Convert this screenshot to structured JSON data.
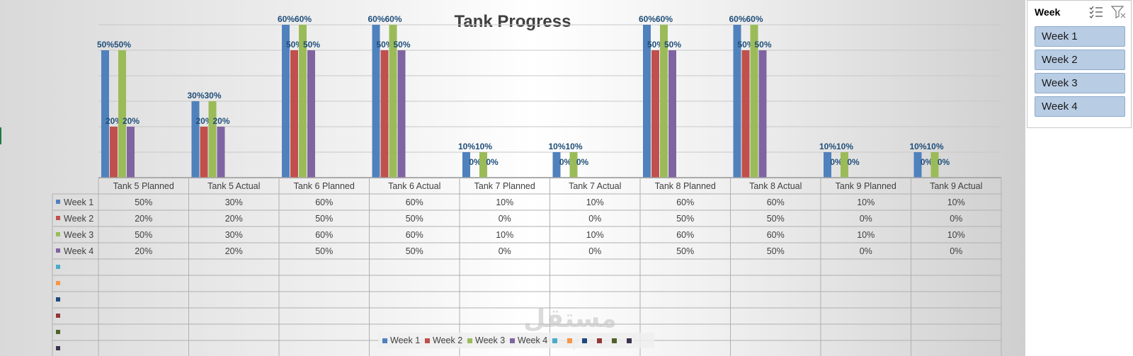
{
  "chart_data": {
    "type": "bar",
    "title": "Tank Progress",
    "categories": [
      "Tank 5 Planned",
      "Tank 5 Actual",
      "Tank 6 Planned",
      "Tank 6 Actual",
      "Tank 7 Planned",
      "Tank 7 Actual",
      "Tank 8 Planned",
      "Tank 8 Actual",
      "Tank 9 Planned",
      "Tank 9 Actual"
    ],
    "series": [
      {
        "name": "Week 1",
        "color": "#4f81bd",
        "values": [
          0.5,
          0.3,
          0.6,
          0.6,
          0.1,
          0.1,
          0.6,
          0.6,
          0.1,
          0.1
        ],
        "labels": [
          "50%",
          "30%",
          "60%",
          "60%",
          "10%",
          "10%",
          "60%",
          "60%",
          "10%",
          "10%"
        ]
      },
      {
        "name": "Week 2",
        "color": "#c0504d",
        "values": [
          0.2,
          0.2,
          0.5,
          0.5,
          0.0,
          0.0,
          0.5,
          0.5,
          0.0,
          0.0
        ],
        "labels": [
          "20%",
          "20%",
          "50%",
          "50%",
          "0%",
          "0%",
          "50%",
          "50%",
          "0%",
          "0%"
        ]
      },
      {
        "name": "Week 3",
        "color": "#9bbb59",
        "values": [
          0.5,
          0.3,
          0.6,
          0.6,
          0.1,
          0.1,
          0.6,
          0.6,
          0.1,
          0.1
        ],
        "labels": [
          "50%",
          "30%",
          "60%",
          "60%",
          "10%",
          "10%",
          "60%",
          "60%",
          "10%",
          "10%"
        ]
      },
      {
        "name": "Week 4",
        "color": "#8064a2",
        "values": [
          0.2,
          0.2,
          0.5,
          0.5,
          0.0,
          0.0,
          0.5,
          0.5,
          0.0,
          0.0
        ],
        "labels": [
          "20%",
          "20%",
          "50%",
          "50%",
          "0%",
          "0%",
          "50%",
          "50%",
          "0%",
          "0%"
        ]
      }
    ],
    "empty_series_colors": [
      "#4bacc6",
      "#f79646",
      "#1f497d",
      "#943634",
      "#4f6228",
      "#3f3151"
    ],
    "ylim": [
      0,
      0.6
    ],
    "grid": true,
    "legend": "bottom",
    "data_table": true
  },
  "slicer": {
    "title": "Week",
    "icons": [
      "multi-select-icon",
      "clear-filter-icon"
    ],
    "items": [
      "Week 1",
      "Week 2",
      "Week 3",
      "Week 4"
    ],
    "selected_color": "#b8cce4"
  },
  "watermark": {
    "arabic": "مستقل",
    "latin": "mostaql.com"
  }
}
